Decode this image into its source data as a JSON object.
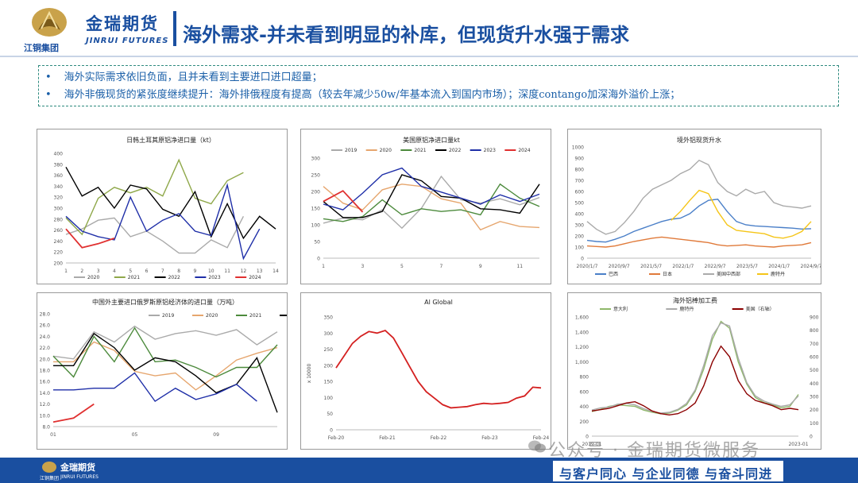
{
  "header": {
    "brand_cn": "金瑞期货",
    "brand_en": "JINRUI FUTURES",
    "group": "江铜集团",
    "title": "海外需求-并未看到明显的补库，但现货升水强于需求"
  },
  "bullets": [
    "海外实际需求依旧负面，且并未看到主要进口进口超量；",
    "海外非俄现货的紧张度继续提升：海外排俄程度有提高（较去年减少50w/年基本流入到国内市场）；深度contango加深海外溢价上涨；"
  ],
  "footer": {
    "brand": "金瑞期货",
    "brand_en": "JINRUI FUTURES",
    "group": "江铜集团",
    "slogan": "与客户同心 与企业同德 与奋斗同进",
    "watermark": "公众号 · 金瑞期货微服务"
  },
  "colors": {
    "brand_blue": "#1a4fa0",
    "gray": "#aaaaaa",
    "olive": "#8fa84a",
    "black": "#000000",
    "navy": "#1f2fa8",
    "red": "#e03030",
    "orange": "#e6a66e",
    "green": "#4c8a3c",
    "blue": "#4a7fc8",
    "yellow": "#f5c518",
    "dark_red": "#b82020",
    "darkred2": "#8b0000"
  },
  "chart_data": [
    {
      "id": "c1",
      "type": "line",
      "title": "日韩土耳其原铝净进口量（kt）",
      "x": [
        1,
        2,
        3,
        4,
        5,
        6,
        7,
        8,
        9,
        10,
        11,
        12,
        13,
        14
      ],
      "xticks": [
        "1",
        "2",
        "3",
        "4",
        "5",
        "6",
        "7",
        "8",
        "9",
        "10",
        "11",
        "12",
        "13",
        "14"
      ],
      "ylim": [
        200,
        400
      ],
      "yticks": [
        "200",
        "220",
        "240",
        "260",
        "280",
        "300",
        "320",
        "340",
        "360",
        "380",
        "400"
      ],
      "series": [
        {
          "name": "2020",
          "color": "#aaaaaa",
          "values": [
            252,
            262,
            278,
            282,
            248,
            258,
            240,
            218,
            218,
            242,
            228,
            285,
            null,
            null
          ]
        },
        {
          "name": "2021",
          "color": "#8fa84a",
          "values": [
            282,
            252,
            318,
            338,
            328,
            338,
            322,
            388,
            318,
            308,
            350,
            365,
            null,
            null
          ]
        },
        {
          "name": "2022",
          "color": "#000000",
          "values": [
            375,
            322,
            338,
            300,
            342,
            335,
            298,
            285,
            330,
            248,
            308,
            245,
            285,
            262
          ]
        },
        {
          "name": "2023",
          "color": "#1f2fa8",
          "values": [
            285,
            258,
            248,
            242,
            320,
            258,
            278,
            290,
            258,
            250,
            342,
            208,
            262,
            null
          ]
        },
        {
          "name": "2024",
          "color": "#e03030",
          "values": [
            262,
            228,
            235,
            245,
            null,
            null,
            null,
            null,
            null,
            null,
            null,
            null,
            null,
            null
          ]
        }
      ]
    },
    {
      "id": "c2",
      "type": "line",
      "title": "美国原铝净进口量kt",
      "x": [
        1,
        2,
        3,
        4,
        5,
        6,
        7,
        8,
        9,
        10,
        11,
        12
      ],
      "xticks": [
        "1",
        "3",
        "5",
        "7",
        "9",
        "11"
      ],
      "ylim": [
        0,
        300
      ],
      "yticks": [
        "0",
        "50",
        "100",
        "150",
        "200",
        "250",
        "300"
      ],
      "series": [
        {
          "name": "2019",
          "color": "#aaaaaa",
          "values": [
            105,
            120,
            115,
            145,
            90,
            150,
            245,
            175,
            165,
            178,
            160,
            182
          ]
        },
        {
          "name": "2020",
          "color": "#e6a66e",
          "values": [
            215,
            165,
            145,
            205,
            222,
            215,
            178,
            165,
            85,
            110,
            95,
            92
          ]
        },
        {
          "name": "2021",
          "color": "#4c8a3c",
          "values": [
            118,
            110,
            125,
            175,
            130,
            148,
            140,
            145,
            130,
            222,
            180,
            155
          ]
        },
        {
          "name": "2022",
          "color": "#000000",
          "values": [
            170,
            122,
            122,
            140,
            250,
            232,
            185,
            180,
            148,
            145,
            135,
            222
          ]
        },
        {
          "name": "2023",
          "color": "#1f2fa8",
          "values": [
            162,
            145,
            195,
            250,
            270,
            215,
            198,
            180,
            162,
            190,
            170,
            192
          ]
        },
        {
          "name": "2024",
          "color": "#e03030",
          "values": [
            170,
            202,
            138,
            null,
            null,
            null,
            null,
            null,
            null,
            null,
            null,
            null
          ]
        }
      ]
    },
    {
      "id": "c3",
      "type": "line",
      "title": "境外铝现货升水",
      "xticks": [
        "2020/1/7",
        "2020/9/7",
        "2021/5/7",
        "2022/1/7",
        "2022/9/7",
        "2023/5/7",
        "2024/1/7",
        "2024/9/7"
      ],
      "ylim": [
        0,
        1000
      ],
      "yticks": [
        "0",
        "100",
        "200",
        "300",
        "400",
        "500",
        "600",
        "700",
        "800",
        "900",
        "1000"
      ],
      "legend": [
        "巴西",
        "日本",
        "美国中西部",
        "鹿特丹"
      ],
      "series": [
        {
          "name": "巴西",
          "color": "#4a7fc8",
          "values": [
            160,
            150,
            145,
            170,
            200,
            240,
            270,
            300,
            330,
            350,
            360,
            400,
            470,
            520,
            530,
            420,
            330,
            300,
            290,
            285,
            280,
            275,
            270,
            262,
            265
          ]
        },
        {
          "name": "日本",
          "color": "#e07a3a",
          "values": [
            110,
            105,
            100,
            110,
            130,
            150,
            165,
            180,
            190,
            180,
            170,
            160,
            150,
            140,
            120,
            110,
            115,
            120,
            110,
            105,
            100,
            110,
            115,
            120,
            140
          ]
        },
        {
          "name": "美国中西部",
          "color": "#aaaaaa",
          "values": [
            330,
            260,
            215,
            240,
            320,
            420,
            540,
            620,
            660,
            700,
            760,
            800,
            880,
            840,
            680,
            600,
            560,
            620,
            580,
            600,
            500,
            470,
            460,
            450,
            470
          ]
        },
        {
          "name": "鹿特丹",
          "color": "#f5c518",
          "values": [
            null,
            null,
            null,
            null,
            null,
            null,
            null,
            null,
            null,
            340,
            420,
            520,
            610,
            580,
            420,
            300,
            250,
            240,
            230,
            220,
            190,
            180,
            200,
            240,
            330
          ]
        }
      ]
    },
    {
      "id": "c4",
      "type": "line",
      "title": "中国外主要进口俄罗斯原铝经济体的进口量（万吨）",
      "x": [
        1,
        2,
        3,
        4,
        5,
        6,
        7,
        8,
        9,
        10,
        11,
        12
      ],
      "xticks": [
        "01",
        "05",
        "09"
      ],
      "ylim": [
        8.0,
        28.0
      ],
      "yticks": [
        "8.0",
        "10.0",
        "12.0",
        "14.0",
        "16.0",
        "18.0",
        "20.0",
        "22.0",
        "24.0",
        "26.0",
        "28.0"
      ],
      "series": [
        {
          "name": "2019",
          "color": "#aaaaaa",
          "values": [
            20.5,
            20.0,
            24.8,
            23.0,
            25.8,
            23.5,
            24.5,
            25.0,
            24.2,
            25.2,
            22.5,
            24.8
          ]
        },
        {
          "name": "2020",
          "color": "#e6a66e",
          "values": [
            19.5,
            19.5,
            23.0,
            21.5,
            17.8,
            17.0,
            17.5,
            14.5,
            17.0,
            19.8,
            21.0,
            22.0
          ]
        },
        {
          "name": "2021",
          "color": "#4c8a3c",
          "values": [
            20.5,
            16.8,
            24.0,
            19.5,
            25.5,
            19.5,
            19.8,
            18.5,
            16.8,
            18.5,
            18.5,
            22.5
          ]
        },
        {
          "name": "2022",
          "color": "#000000",
          "values": [
            18.8,
            18.8,
            24.5,
            22.0,
            18.0,
            20.2,
            19.5,
            17.0,
            14.0,
            15.5,
            20.2,
            10.5
          ]
        },
        {
          "name": "2023",
          "color": "#1f2fa8",
          "values": [
            14.5,
            14.5,
            14.8,
            14.8,
            17.5,
            12.5,
            14.8,
            12.8,
            13.8,
            15.5,
            12.5,
            null
          ]
        },
        {
          "name": "2024",
          "color": "#e03030",
          "values": [
            8.8,
            9.5,
            12.0,
            null,
            null,
            null,
            null,
            null,
            null,
            null,
            null,
            null
          ]
        }
      ]
    },
    {
      "id": "c5",
      "type": "line",
      "title": "Al Global",
      "ylabel": "x 10000",
      "xticks": [
        "Feb-20",
        "Feb-21",
        "Feb-22",
        "Feb-23",
        "Feb-24"
      ],
      "ylim": [
        0,
        350
      ],
      "yticks": [
        "0",
        "50",
        "100",
        "150",
        "200",
        "250",
        "300",
        "350"
      ],
      "series": [
        {
          "name": "Al Global",
          "color": "#d42020",
          "values": [
            192,
            230,
            268,
            290,
            305,
            300,
            308,
            285,
            240,
            195,
            150,
            118,
            98,
            78,
            68,
            70,
            72,
            78,
            82,
            80,
            82,
            85,
            98,
            105,
            132,
            130
          ]
        }
      ]
    },
    {
      "id": "c6",
      "type": "line",
      "title": "海外铝棒加工费",
      "xticks": [
        "2019-01",
        "2023-01"
      ],
      "ylim": [
        0,
        1600
      ],
      "yticks": [
        "0",
        "200",
        "400",
        "600",
        "800",
        "1,000",
        "1,200",
        "1,400",
        "1,600"
      ],
      "y2lim": [
        0,
        900
      ],
      "y2ticks": [
        "0",
        "100",
        "200",
        "300",
        "400",
        "500",
        "600",
        "700",
        "800",
        "900"
      ],
      "legend": [
        "意大利",
        "鹿特丹",
        "美国（右轴）"
      ],
      "series": [
        {
          "name": "意大利",
          "color": "#8fb86a",
          "values": [
            330,
            360,
            400,
            420,
            410,
            400,
            350,
            320,
            300,
            310,
            350,
            420,
            600,
            900,
            1300,
            1540,
            1450,
            1000,
            700,
            520,
            450,
            420,
            380,
            400,
            560
          ]
        },
        {
          "name": "鹿特丹",
          "color": "#aaaaaa",
          "values": [
            350,
            380,
            390,
            430,
            440,
            420,
            370,
            330,
            310,
            320,
            360,
            440,
            620,
            950,
            1350,
            1520,
            1480,
            1050,
            720,
            540,
            470,
            430,
            400,
            420,
            540
          ]
        },
        {
          "name": "美国（右轴）",
          "color": "#8b0000",
          "values": [
            190,
            200,
            210,
            230,
            250,
            260,
            230,
            190,
            170,
            160,
            170,
            200,
            250,
            380,
            560,
            680,
            600,
            420,
            320,
            270,
            250,
            230,
            200,
            210,
            200
          ]
        }
      ]
    }
  ]
}
